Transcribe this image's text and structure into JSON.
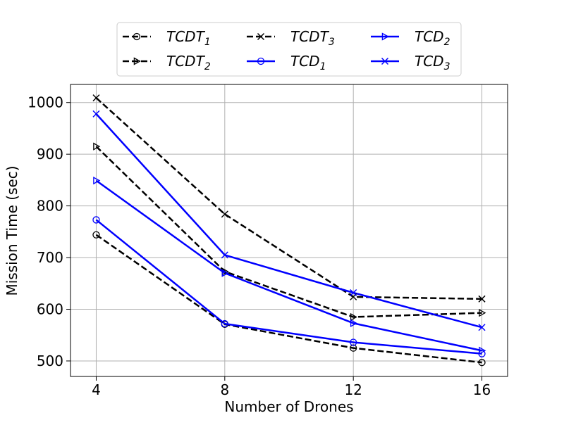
{
  "chart_data": {
    "type": "line",
    "title": "",
    "xlabel": "Number of Drones",
    "ylabel": "Mission Time (sec)",
    "x": [
      4,
      8,
      12,
      16
    ],
    "xlim": [
      3.2,
      16.8
    ],
    "ylim": [
      470,
      1035
    ],
    "xticks": [
      4,
      8,
      12,
      16
    ],
    "yticks": [
      500,
      600,
      700,
      800,
      900,
      1000
    ],
    "grid": true,
    "legend_position": "top-center, above plot, 3 columns",
    "series": [
      {
        "name": "TCDT1",
        "label_main": "TCDT",
        "label_sub": "1",
        "color": "#000000",
        "dash": "dashed",
        "marker": "circle",
        "values": [
          744,
          571,
          525,
          497
        ]
      },
      {
        "name": "TCDT2",
        "label_main": "TCDT",
        "label_sub": "2",
        "color": "#000000",
        "dash": "dashed",
        "marker": "triangle-right",
        "values": [
          915,
          673,
          585,
          593
        ]
      },
      {
        "name": "TCDT3",
        "label_main": "TCDT",
        "label_sub": "3",
        "color": "#000000",
        "dash": "dashed",
        "marker": "x",
        "values": [
          1009,
          784,
          624,
          620
        ]
      },
      {
        "name": "TCD1",
        "label_main": "TCD",
        "label_sub": "1",
        "color": "#0000ff",
        "dash": "solid",
        "marker": "circle",
        "values": [
          773,
          572,
          536,
          514
        ]
      },
      {
        "name": "TCD2",
        "label_main": "TCD",
        "label_sub": "2",
        "color": "#0000ff",
        "dash": "solid",
        "marker": "triangle-right",
        "values": [
          849,
          670,
          573,
          520
        ]
      },
      {
        "name": "TCD3",
        "label_main": "TCD",
        "label_sub": "3",
        "color": "#0000ff",
        "dash": "solid",
        "marker": "x",
        "values": [
          978,
          705,
          632,
          565
        ]
      }
    ]
  }
}
